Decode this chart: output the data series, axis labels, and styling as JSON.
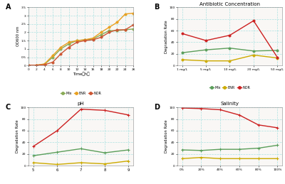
{
  "panel_A": {
    "xlabel": "Time（h）",
    "ylabel": "OD600 nm",
    "xlim": [
      0,
      26
    ],
    "ylim": [
      0,
      3.5
    ],
    "xticks": [
      0,
      2,
      4,
      6,
      8,
      10,
      12,
      14,
      16,
      18,
      20,
      22,
      24,
      26
    ],
    "yticks": [
      0,
      0.5,
      1.0,
      1.5,
      2.0,
      2.5,
      3.0,
      3.5
    ],
    "Mix": {
      "x": [
        0,
        2,
        4,
        6,
        8,
        10,
        12,
        14,
        16,
        18,
        20,
        22,
        24,
        26
      ],
      "y": [
        0.02,
        0.02,
        0.08,
        0.5,
        1.0,
        1.3,
        1.5,
        1.55,
        1.6,
        1.85,
        2.1,
        2.1,
        2.15,
        2.2
      ],
      "color": "#88aa55"
    },
    "ENR": {
      "x": [
        0,
        2,
        4,
        6,
        8,
        10,
        12,
        14,
        16,
        18,
        20,
        22,
        24,
        26
      ],
      "y": [
        0.02,
        0.02,
        0.1,
        0.6,
        1.1,
        1.4,
        1.5,
        1.55,
        1.65,
        2.0,
        2.3,
        2.6,
        3.1,
        3.15
      ],
      "color": "#e8a020"
    },
    "NOR": {
      "x": [
        0,
        2,
        4,
        6,
        8,
        10,
        12,
        14,
        16,
        18,
        20,
        22,
        24,
        26
      ],
      "y": [
        0.02,
        0.02,
        0.05,
        0.2,
        0.7,
        1.1,
        1.4,
        1.5,
        1.55,
        1.7,
        2.0,
        2.15,
        2.15,
        2.45
      ],
      "color": "#cc5533"
    }
  },
  "panel_B": {
    "title": "Antibiotic Concentration",
    "ylabel": "Degradation Rate",
    "ylim": [
      0,
      100
    ],
    "yticks": [
      0,
      20,
      40,
      60,
      80,
      100
    ],
    "xtick_labels": [
      "1 mg/L",
      "5 mg/L",
      "10 mg/L",
      "20 mg/L",
      "50 mg/L"
    ],
    "Mix": {
      "y": [
        22,
        27,
        30,
        25,
        26
      ],
      "color": "#5a9e5a"
    },
    "ENR": {
      "y": [
        10,
        8,
        8,
        18,
        13
      ],
      "color": "#ccaa00"
    },
    "NOR": {
      "y": [
        55,
        43,
        52,
        77,
        14
      ],
      "color": "#cc2020"
    }
  },
  "panel_C": {
    "title": "pH",
    "ylabel": "Degradation Rate",
    "ylim": [
      0,
      100
    ],
    "yticks": [
      0,
      20,
      40,
      60,
      80,
      100
    ],
    "xtick_labels": [
      "5",
      "6",
      "7",
      "8",
      "9"
    ],
    "Mix": {
      "y": [
        17,
        23,
        29,
        22,
        27
      ],
      "color": "#5a9e5a"
    },
    "ENR": {
      "y": [
        5,
        2,
        5,
        3,
        8
      ],
      "color": "#ccaa00"
    },
    "NOR": {
      "y": [
        33,
        60,
        97,
        95,
        87
      ],
      "color": "#cc2020"
    }
  },
  "panel_D": {
    "title": "Salinity",
    "ylabel": "Degradation Rate",
    "ylim": [
      0,
      100
    ],
    "yticks": [
      0,
      20,
      40,
      60,
      80,
      100
    ],
    "xtick_labels": [
      "0%",
      "20%",
      "40%",
      "60%",
      "80%",
      "100%"
    ],
    "Mix": {
      "y": [
        27,
        26,
        28,
        28,
        30,
        35
      ],
      "color": "#5a9e5a"
    },
    "ENR": {
      "y": [
        12,
        14,
        12,
        12,
        12,
        12
      ],
      "color": "#ccaa00"
    },
    "NOR": {
      "y": [
        99,
        98,
        96,
        87,
        70,
        65
      ],
      "color": "#cc2020"
    }
  },
  "bg_color": "#ffffff",
  "plot_bg": "#f9f7f5",
  "grid_color": "#99dddd",
  "line_width": 1.0,
  "marker_size": 2.5
}
